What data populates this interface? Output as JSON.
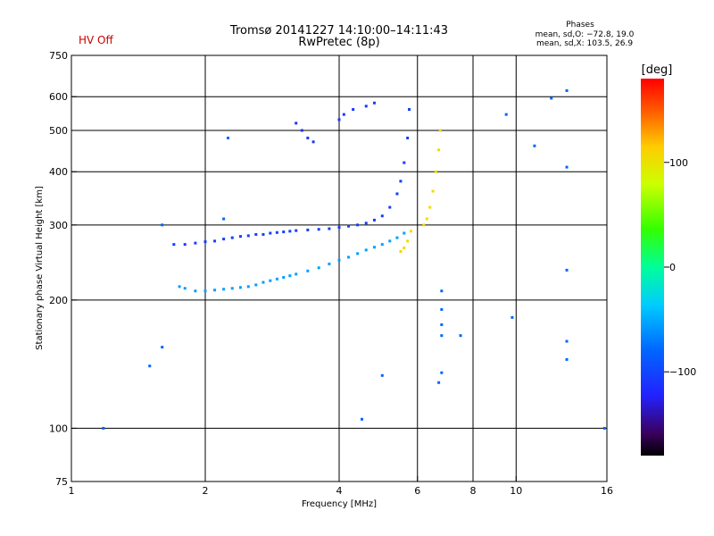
{
  "header": {
    "title": "Tromsø 20141227 14:10:00–14:11:43",
    "subtitle": "RwPretec (8p)",
    "status": "HV Off"
  },
  "phases_box": {
    "heading": "Phases",
    "line_o": "mean, sd,O: −72.8, 19.0",
    "line_x": "mean, sd,X: 103.5, 26.9"
  },
  "colorbar": {
    "unit_label": "[deg]",
    "ticks": [
      "100",
      "0",
      "−100"
    ],
    "tick_values": [
      100,
      0,
      -100
    ],
    "range": [
      -180,
      180
    ]
  },
  "chart_data": {
    "type": "scatter",
    "title": "Tromsø 20141227 14:10:00–14:11:43",
    "subtitle": "RwPretec (8p)",
    "xlabel": "Frequency [MHz]",
    "ylabel": "Stationary phase Virtual Height [km]",
    "x_scale": "log",
    "y_scale": "log",
    "xlim": [
      1,
      16
    ],
    "ylim": [
      75,
      750
    ],
    "x_ticks": [
      1,
      2,
      4,
      6,
      8,
      10,
      16
    ],
    "x_tick_labels": [
      "1",
      "2",
      "4",
      "6",
      "8",
      "10",
      "16"
    ],
    "y_ticks": [
      75,
      100,
      200,
      300,
      400,
      500,
      600,
      750
    ],
    "y_tick_labels": [
      "75",
      "100",
      "200",
      "300",
      "400",
      "500",
      "600",
      "750"
    ],
    "grid": true,
    "point_color_scale": "phase [deg], rainbow from black (−180) through blue, cyan, green, yellow to red (+180)",
    "series": [
      {
        "description": "low band trace (phase ~ −40 to −70)",
        "points": [
          [
            1.75,
            215
          ],
          [
            1.8,
            213
          ],
          [
            1.9,
            210
          ],
          [
            2.0,
            210
          ],
          [
            2.1,
            211
          ],
          [
            2.2,
            212
          ],
          [
            2.3,
            213
          ],
          [
            2.4,
            214
          ],
          [
            2.5,
            215
          ],
          [
            2.6,
            217
          ],
          [
            2.7,
            220
          ],
          [
            2.8,
            222
          ],
          [
            2.9,
            224
          ],
          [
            3.0,
            226
          ],
          [
            3.1,
            228
          ],
          [
            3.2,
            230
          ],
          [
            3.4,
            234
          ],
          [
            3.6,
            238
          ],
          [
            3.8,
            243
          ],
          [
            4.0,
            248
          ],
          [
            4.2,
            252
          ],
          [
            4.4,
            257
          ],
          [
            4.6,
            262
          ],
          [
            4.8,
            266
          ],
          [
            5.0,
            270
          ],
          [
            5.2,
            275
          ],
          [
            5.4,
            280
          ],
          [
            5.6,
            287
          ]
        ],
        "phase": -55
      },
      {
        "description": "main F-layer trace (phase ~ −90 to −120)",
        "points": [
          [
            1.7,
            270
          ],
          [
            1.8,
            270
          ],
          [
            1.9,
            272
          ],
          [
            2.0,
            274
          ],
          [
            2.1,
            275
          ],
          [
            2.2,
            278
          ],
          [
            2.3,
            280
          ],
          [
            2.4,
            282
          ],
          [
            2.5,
            283
          ],
          [
            2.6,
            285
          ],
          [
            2.7,
            285
          ],
          [
            2.8,
            287
          ],
          [
            2.9,
            288
          ],
          [
            3.0,
            289
          ],
          [
            3.1,
            290
          ],
          [
            3.2,
            291
          ],
          [
            3.4,
            292
          ],
          [
            3.6,
            293
          ],
          [
            3.8,
            294
          ],
          [
            4.0,
            296
          ],
          [
            4.2,
            298
          ],
          [
            4.4,
            300
          ],
          [
            4.6,
            303
          ],
          [
            4.8,
            308
          ],
          [
            5.0,
            315
          ],
          [
            5.2,
            330
          ],
          [
            5.4,
            355
          ],
          [
            5.5,
            380
          ],
          [
            5.6,
            420
          ],
          [
            5.7,
            480
          ],
          [
            5.75,
            560
          ]
        ],
        "phase": -105
      },
      {
        "description": "X-mode trace (phase ~ +90 to +130)",
        "points": [
          [
            5.5,
            260
          ],
          [
            5.6,
            265
          ],
          [
            5.7,
            275
          ],
          [
            5.8,
            290
          ],
          [
            6.2,
            300
          ],
          [
            6.3,
            310
          ],
          [
            6.4,
            330
          ],
          [
            6.5,
            360
          ],
          [
            6.6,
            400
          ],
          [
            6.7,
            450
          ],
          [
            6.75,
            500
          ]
        ],
        "phase": 105
      },
      {
        "description": "upper echoes near 3.3–4.8 MHz (phase ~ −110)",
        "points": [
          [
            3.2,
            520
          ],
          [
            3.3,
            500
          ],
          [
            3.4,
            480
          ],
          [
            3.5,
            470
          ],
          [
            4.0,
            530
          ],
          [
            4.1,
            545
          ],
          [
            4.3,
            560
          ],
          [
            4.6,
            570
          ],
          [
            4.8,
            580
          ]
        ],
        "phase": -110
      },
      {
        "description": "scattered isolated points",
        "points": [
          [
            1.18,
            100
          ],
          [
            1.5,
            140
          ],
          [
            1.6,
            155
          ],
          [
            1.6,
            300
          ],
          [
            2.25,
            480
          ],
          [
            2.2,
            310
          ],
          [
            4.5,
            105
          ],
          [
            5.0,
            133
          ],
          [
            6.8,
            210
          ],
          [
            6.8,
            190
          ],
          [
            6.8,
            175
          ],
          [
            6.8,
            165
          ],
          [
            6.8,
            135
          ],
          [
            6.7,
            128
          ],
          [
            7.5,
            165
          ],
          [
            9.8,
            182
          ],
          [
            9.5,
            545
          ],
          [
            11.0,
            460
          ],
          [
            12.0,
            595
          ],
          [
            13.0,
            620
          ],
          [
            13.0,
            410
          ],
          [
            13.0,
            235
          ],
          [
            13.0,
            160
          ],
          [
            13.0,
            145
          ],
          [
            15.8,
            100
          ]
        ],
        "phase": -80
      }
    ]
  }
}
